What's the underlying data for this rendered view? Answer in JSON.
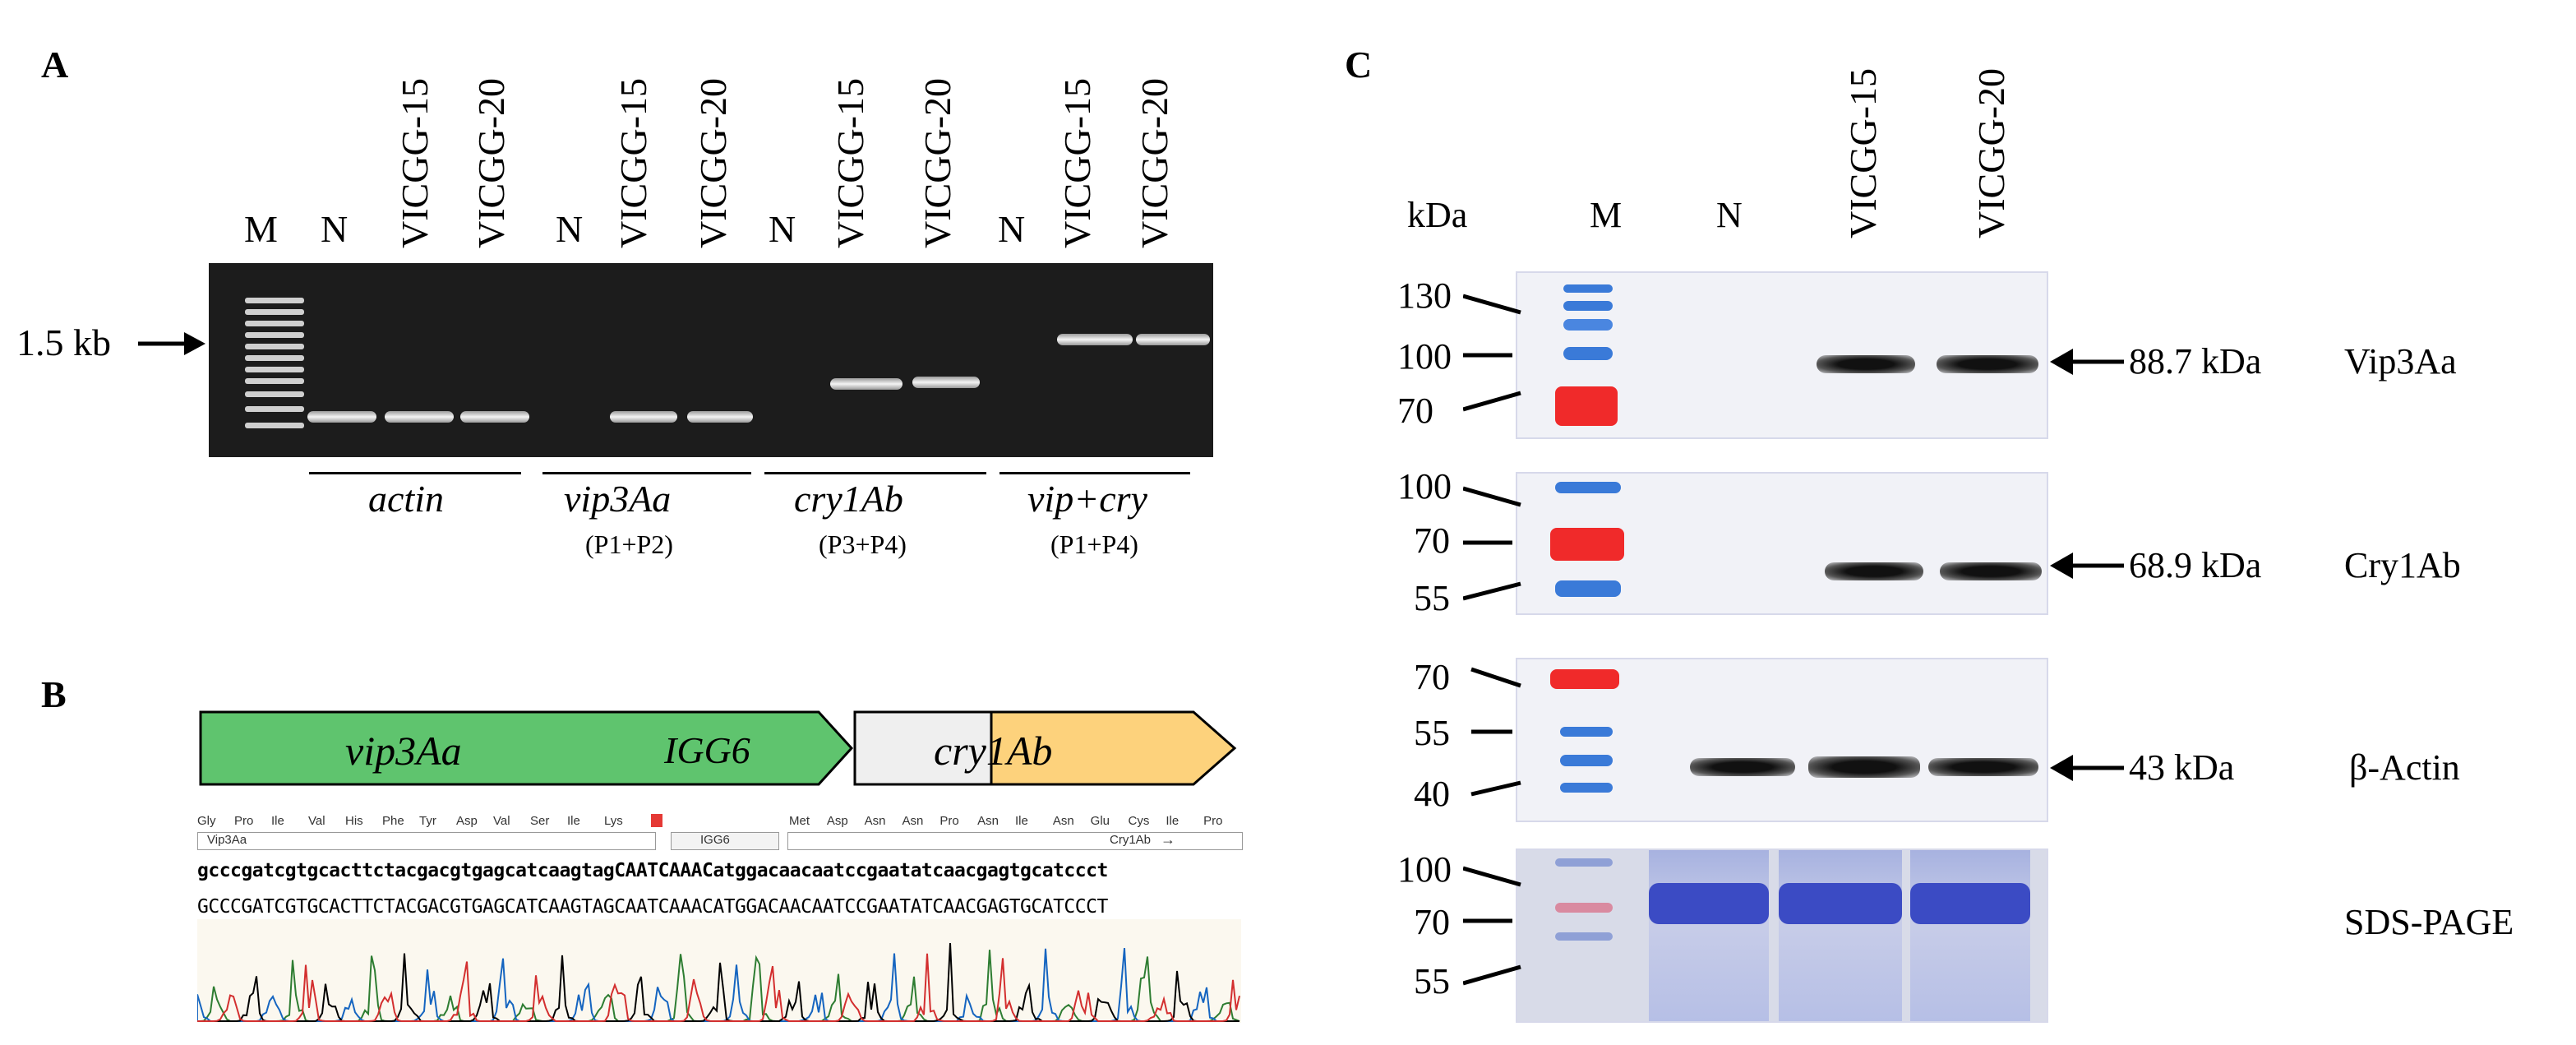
{
  "panelA": {
    "letter": "A",
    "size_marker": "1.5 kb",
    "marker_lane": "M",
    "lanes": [
      {
        "label": "N"
      },
      {
        "label": "VICGG-15"
      },
      {
        "label": "VICGG-20"
      },
      {
        "label": "N"
      },
      {
        "label": "VICGG-15"
      },
      {
        "label": "VICGG-20"
      },
      {
        "label": "N"
      },
      {
        "label": "VICGG-15"
      },
      {
        "label": "VICGG-20"
      },
      {
        "label": "N"
      },
      {
        "label": "VICGG-15"
      },
      {
        "label": "VICGG-20"
      }
    ],
    "groups": [
      {
        "gene": "actin",
        "primers": ""
      },
      {
        "gene": "vip3Aa",
        "primers": "(P1+P2)"
      },
      {
        "gene": "cry1Ab",
        "primers": "(P3+P4)"
      },
      {
        "gene": "vip+cry",
        "primers": "(P1+P4)"
      }
    ]
  },
  "panelB": {
    "letter": "B",
    "construct": [
      {
        "label": "vip3Aa",
        "color": "#5fc46e"
      },
      {
        "label": "IGG6",
        "color": "#efefef"
      },
      {
        "label": "cry1Ab",
        "color": "#fdd27c"
      }
    ],
    "aa_left": [
      "Gly",
      "Pro",
      "Ile",
      "Val",
      "His",
      "Phe",
      "Tyr",
      "Asp",
      "Val",
      "Ser",
      "Ile",
      "Lys"
    ],
    "aa_right": [
      "Met",
      "Asp",
      "Asn",
      "Asn",
      "Pro",
      "Asn",
      "Ile",
      "Asn",
      "Glu",
      "Cys",
      "Ile",
      "Pro"
    ],
    "feature_left": "Vip3Aa",
    "feature_mid": "IGG6",
    "feature_right": "Cry1Ab",
    "feature_arrow": "→",
    "seq_lower": "gcccgatcgtgcacttctacgacgtgagcatcaagtagCAATCAAACatggacaacaatccgaatatcaacgagtgcatccct",
    "seq_upper": "GCCCGATCGTGCACTTCTACGACGTGAGCATCAAGTAGCAATCAAACATGGACAACAATCCGAATATCAACGAGTGCATCCCT"
  },
  "panelC": {
    "letter": "C",
    "unit": "kDa",
    "lanes": [
      {
        "label": "M"
      },
      {
        "label": "N"
      },
      {
        "label": "VICGG-15"
      },
      {
        "label": "VICGG-20"
      }
    ],
    "blots": [
      {
        "markers": [
          "130",
          "100",
          "70"
        ],
        "band_label": "88.7 kDa",
        "protein": "Vip3Aa"
      },
      {
        "markers": [
          "100",
          "70",
          "55"
        ],
        "band_label": "68.9 kDa",
        "protein": "Cry1Ab"
      },
      {
        "markers": [
          "70",
          "55",
          "40"
        ],
        "band_label": "43 kDa",
        "protein": "β-Actin"
      },
      {
        "markers": [
          "100",
          "70",
          "55"
        ],
        "band_label": "",
        "protein": "SDS-PAGE"
      }
    ]
  }
}
